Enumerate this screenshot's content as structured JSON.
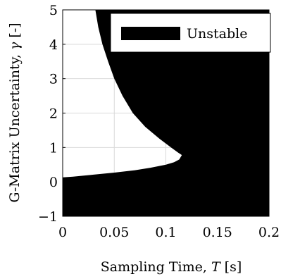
{
  "chart_data": {
    "type": "area",
    "xlabel_prefix": "Sampling Time, ",
    "xlabel_var": "T",
    "xlabel_suffix": " [s]",
    "ylabel_prefix": "G-Matrix Uncertainty, ",
    "ylabel_var": "γ",
    "ylabel_suffix": " [-]",
    "xlim": [
      0,
      0.2
    ],
    "ylim": [
      -1,
      5
    ],
    "x_ticks": [
      0,
      0.05,
      0.1,
      0.15,
      0.2
    ],
    "x_tick_labels": [
      "0",
      "0.05",
      "0.1",
      "0.15",
      "0.2"
    ],
    "y_ticks": [
      -1,
      0,
      1,
      2,
      3,
      4,
      5
    ],
    "y_tick_labels": [
      "−1",
      "0",
      "1",
      "2",
      "3",
      "4",
      "5"
    ],
    "grid": true,
    "legend_position": "top-right",
    "legend": [
      "Unstable"
    ],
    "series": [
      {
        "name": "Unstable",
        "color": "#000000",
        "stable_boundary_upper": [
          {
            "x": 0.0317,
            "y": 5.0
          },
          {
            "x": 0.0345,
            "y": 4.5
          },
          {
            "x": 0.0385,
            "y": 4.0
          },
          {
            "x": 0.044,
            "y": 3.5
          },
          {
            "x": 0.05,
            "y": 3.0
          },
          {
            "x": 0.058,
            "y": 2.5
          },
          {
            "x": 0.068,
            "y": 2.0
          },
          {
            "x": 0.08,
            "y": 1.6
          },
          {
            "x": 0.094,
            "y": 1.25
          },
          {
            "x": 0.105,
            "y": 1.0
          },
          {
            "x": 0.112,
            "y": 0.85
          },
          {
            "x": 0.1155,
            "y": 0.78
          }
        ],
        "stable_boundary_lower": [
          {
            "x": 0.1155,
            "y": 0.78
          },
          {
            "x": 0.113,
            "y": 0.65
          },
          {
            "x": 0.108,
            "y": 0.57
          },
          {
            "x": 0.1,
            "y": 0.5
          },
          {
            "x": 0.085,
            "y": 0.41
          },
          {
            "x": 0.07,
            "y": 0.34
          },
          {
            "x": 0.05,
            "y": 0.27
          },
          {
            "x": 0.03,
            "y": 0.21
          },
          {
            "x": 0.01,
            "y": 0.15
          },
          {
            "x": 0.0,
            "y": 0.13
          }
        ]
      }
    ]
  }
}
